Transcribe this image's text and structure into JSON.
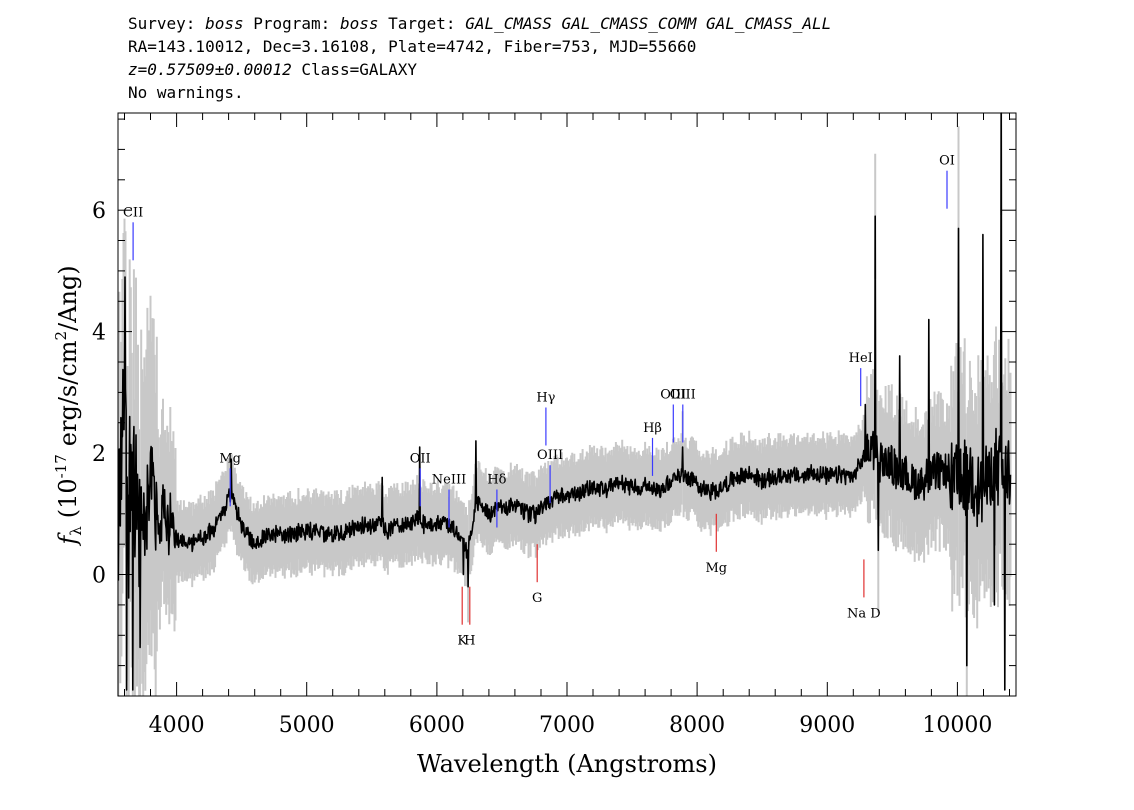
{
  "header": {
    "survey_label": "Survey:",
    "survey": "boss",
    "program_label": "Program:",
    "program": "boss",
    "target_label": "Target:",
    "target": "GAL_CMASS GAL_CMASS_COMM GAL_CMASS_ALL",
    "line2": "RA=143.10012, Dec=3.16108, Plate=4742, Fiber=753, MJD=55660",
    "redshift": "z=0.57509±0.00012",
    "class_text": "Class=GALAXY",
    "warnings": "No warnings."
  },
  "chart_data": {
    "type": "line",
    "xlabel": "Wavelength (Angstroms)",
    "ylabel_prefix": "f",
    "ylabel_sub": "λ",
    "ylabel_main": "(10",
    "ylabel_exp": "-17",
    "ylabel_units": "erg/s/cm",
    "ylabel_sq": "2",
    "ylabel_end": "/Ang)",
    "xlim": [
      3550,
      10450
    ],
    "ylim": [
      -2.0,
      7.6
    ],
    "x_ticks": [
      4000,
      5000,
      6000,
      7000,
      8000,
      9000,
      10000
    ],
    "y_ticks": [
      0,
      2,
      4,
      6
    ],
    "colors": {
      "spectrum": "#000000",
      "error": "#c8c8c8",
      "emission": "#3a3aff",
      "absorption": "#e03030"
    },
    "anchors": [
      [
        3560,
        1.0
      ],
      [
        3600,
        3.4
      ],
      [
        3630,
        0.6
      ],
      [
        3660,
        1.8
      ],
      [
        3700,
        0.8
      ],
      [
        3750,
        0.5
      ],
      [
        3800,
        1.4
      ],
      [
        3850,
        0.9
      ],
      [
        3900,
        1.0
      ],
      [
        4000,
        0.6
      ],
      [
        4100,
        0.5
      ],
      [
        4200,
        0.6
      ],
      [
        4300,
        0.8
      ],
      [
        4420,
        1.35
      ],
      [
        4500,
        0.8
      ],
      [
        4600,
        0.5
      ],
      [
        4700,
        0.7
      ],
      [
        4800,
        0.65
      ],
      [
        4900,
        0.7
      ],
      [
        5000,
        0.72
      ],
      [
        5100,
        0.7
      ],
      [
        5200,
        0.65
      ],
      [
        5300,
        0.7
      ],
      [
        5400,
        0.8
      ],
      [
        5500,
        0.75
      ],
      [
        5580,
        0.9
      ],
      [
        5600,
        0.7
      ],
      [
        5700,
        0.8
      ],
      [
        5800,
        0.85
      ],
      [
        5870,
        1.0
      ],
      [
        5900,
        0.8
      ],
      [
        6000,
        0.85
      ],
      [
        6100,
        0.8
      ],
      [
        6180,
        0.6
      ],
      [
        6230,
        0.4
      ],
      [
        6270,
        0.7
      ],
      [
        6300,
        1.2
      ],
      [
        6400,
        1.0
      ],
      [
        6500,
        1.1
      ],
      [
        6600,
        1.15
      ],
      [
        6700,
        1.0
      ],
      [
        6760,
        1.0
      ],
      [
        6800,
        1.1
      ],
      [
        6900,
        1.25
      ],
      [
        7000,
        1.3
      ],
      [
        7100,
        1.35
      ],
      [
        7200,
        1.45
      ],
      [
        7300,
        1.4
      ],
      [
        7400,
        1.5
      ],
      [
        7500,
        1.45
      ],
      [
        7600,
        1.45
      ],
      [
        7700,
        1.4
      ],
      [
        7800,
        1.55
      ],
      [
        7900,
        1.65
      ],
      [
        8000,
        1.5
      ],
      [
        8100,
        1.35
      ],
      [
        8200,
        1.45
      ],
      [
        8300,
        1.6
      ],
      [
        8400,
        1.65
      ],
      [
        8500,
        1.55
      ],
      [
        8600,
        1.6
      ],
      [
        8700,
        1.65
      ],
      [
        8800,
        1.6
      ],
      [
        8900,
        1.7
      ],
      [
        9000,
        1.6
      ],
      [
        9100,
        1.65
      ],
      [
        9200,
        1.6
      ],
      [
        9300,
        2.0
      ],
      [
        9350,
        2.1
      ],
      [
        9400,
        1.9
      ],
      [
        9500,
        1.8
      ],
      [
        9600,
        1.6
      ],
      [
        9700,
        1.5
      ],
      [
        9800,
        1.65
      ],
      [
        9900,
        1.7
      ],
      [
        10000,
        1.5
      ],
      [
        10100,
        1.6
      ],
      [
        10200,
        1.4
      ],
      [
        10300,
        1.8
      ],
      [
        10400,
        1.5
      ]
    ],
    "spikes": [
      [
        3604,
        4.9
      ],
      [
        3616,
        -1.9
      ],
      [
        3640,
        2.6
      ],
      [
        3664,
        -1.9
      ],
      [
        3690,
        2.3
      ],
      [
        3722,
        -1.2
      ],
      [
        4420,
        1.9
      ],
      [
        5580,
        1.6
      ],
      [
        5870,
        2.1
      ],
      [
        6300,
        2.2
      ],
      [
        6205,
        0.0
      ],
      [
        6240,
        -0.2
      ],
      [
        7890,
        2.1
      ],
      [
        9292,
        2.8
      ],
      [
        9370,
        5.9
      ],
      [
        9392,
        0.4
      ],
      [
        9555,
        3.6
      ],
      [
        9780,
        4.2
      ],
      [
        9950,
        1.1
      ],
      [
        10010,
        5.7
      ],
      [
        10072,
        -1.5
      ],
      [
        10196,
        5.6
      ],
      [
        10286,
        -0.5
      ],
      [
        10335,
        7.6
      ],
      [
        10364,
        -1.9
      ],
      [
        10392,
        2.2
      ]
    ],
    "emission_lines": [
      {
        "label": "CII",
        "wave": 3666,
        "y": 5.8
      },
      {
        "label": "Mg",
        "wave": 4412,
        "y": 1.75
      },
      {
        "label": "OII",
        "wave": 5872,
        "y": 1.75
      },
      {
        "label": "NeIII",
        "wave": 6093,
        "y": 1.4
      },
      {
        "label": "Hδ",
        "wave": 6461,
        "y": 1.4
      },
      {
        "label": "Hγ",
        "wave": 6838,
        "y": 2.75
      },
      {
        "label": "OIII",
        "wave": 6870,
        "y": 1.8
      },
      {
        "label": "Hβ",
        "wave": 7657,
        "y": 2.25
      },
      {
        "label": "OIII",
        "wave": 7817,
        "y": 2.8
      },
      {
        "label": "OIII",
        "wave": 7890,
        "y": 2.8
      },
      {
        "label": "HeI",
        "wave": 9257,
        "y": 3.4
      },
      {
        "label": "OI",
        "wave": 9920,
        "y": 6.65
      }
    ],
    "absorption_lines": [
      {
        "label": "K",
        "wave": 6195,
        "y": -0.2
      },
      {
        "label": "H",
        "wave": 6253,
        "y": -0.2
      },
      {
        "label": "G",
        "wave": 6771,
        "y": 0.5
      },
      {
        "label": "Mg",
        "wave": 8147,
        "y": 1.0
      },
      {
        "label": "Na D",
        "wave": 9281,
        "y": 0.25
      }
    ]
  }
}
